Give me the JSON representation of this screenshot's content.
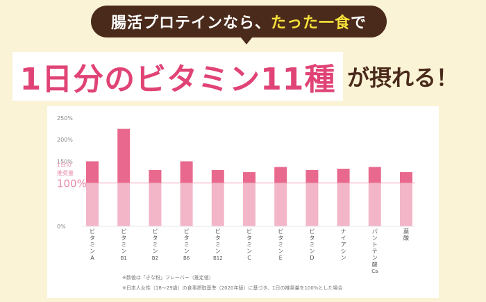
{
  "banner": {
    "part1": "腸活プロテインなら、",
    "part2": "たった一食",
    "part3": "で"
  },
  "headline": {
    "main": "1日分のビタミン11種",
    "tail": "が摂れる！"
  },
  "chart_data": {
    "type": "bar",
    "categories": [
      [
        "ビ",
        "タ",
        "ミ",
        "ン",
        "A"
      ],
      [
        "ビ",
        "タ",
        "ミ",
        "ン",
        "B1"
      ],
      [
        "ビ",
        "タ",
        "ミ",
        "ン",
        "B2"
      ],
      [
        "ビ",
        "タ",
        "ミ",
        "ン",
        "B6"
      ],
      [
        "ビ",
        "タ",
        "ミ",
        "ン",
        "B12"
      ],
      [
        "ビ",
        "タ",
        "ミ",
        "ン",
        "C"
      ],
      [
        "ビ",
        "タ",
        "ミ",
        "ン",
        "E"
      ],
      [
        "ビ",
        "タ",
        "ミ",
        "ン",
        "D"
      ],
      [
        "ナ",
        "イ",
        "ア",
        "シ",
        "ン"
      ],
      [
        "パ",
        "ン",
        "ト",
        "テ",
        "ン",
        "酸",
        "Ca"
      ],
      [
        "葉",
        "酸"
      ]
    ],
    "values": [
      150,
      225,
      130,
      150,
      130,
      125,
      137,
      130,
      133,
      137,
      125
    ],
    "yticks": [
      "250%",
      "200%",
      "150%",
      "100%",
      "0%"
    ],
    "ylim": [
      0,
      250
    ],
    "reference": {
      "value": 100,
      "label_line1": "1日の",
      "label_line2": "推奨量"
    },
    "colors": {
      "base": "#f3b6c9",
      "excess": "#e8698d",
      "reference_line": "#f0a0b7",
      "reference_text": "#e88aa8"
    }
  },
  "notes": [
    "※数値は「きな粉」フレーバー（推定値）",
    "※日本人女性（18〜29歳）の食事摂取基準（2020年版）に基づき、1日の推奨量を100%とした場合"
  ]
}
